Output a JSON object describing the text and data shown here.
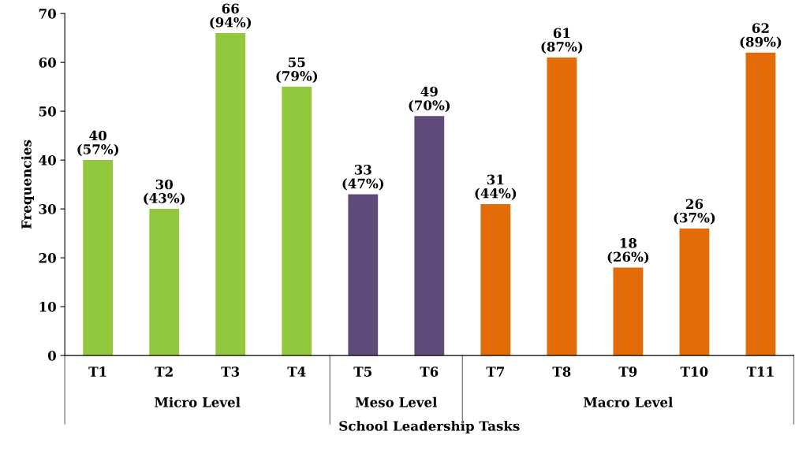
{
  "chart_data": {
    "type": "bar",
    "xlabel": "School Leadership Tasks",
    "ylabel": "Frequencies",
    "categories": [
      "T1",
      "T2",
      "T3",
      "T4",
      "T5",
      "T6",
      "T7",
      "T8",
      "T9",
      "T10",
      "T11"
    ],
    "values": [
      40,
      30,
      66,
      55,
      33,
      49,
      31,
      61,
      18,
      26,
      62
    ],
    "colors": [
      "#92c83e",
      "#92c83e",
      "#92c83e",
      "#92c83e",
      "#604a7b",
      "#604a7b",
      "#e36c09",
      "#e36c09",
      "#e36c09",
      "#e36c09",
      "#e36c09"
    ],
    "value_labels": [
      "40\n(57%)",
      "30\n(43%)",
      "66\n(94%)",
      "55\n(79%)",
      "33\n(47%)",
      "49\n(70%)",
      "31\n(44%)",
      "61\n(87%)",
      "18\n(26%)",
      "26\n(37%)",
      "62\n(89%)"
    ],
    "ylim": [
      0,
      70
    ],
    "yticks": [
      0,
      10,
      20,
      30,
      40,
      50,
      60,
      70
    ],
    "grid": false,
    "annotations": [
      "Micro Level",
      "Meso Level",
      "Macro Level"
    ]
  }
}
